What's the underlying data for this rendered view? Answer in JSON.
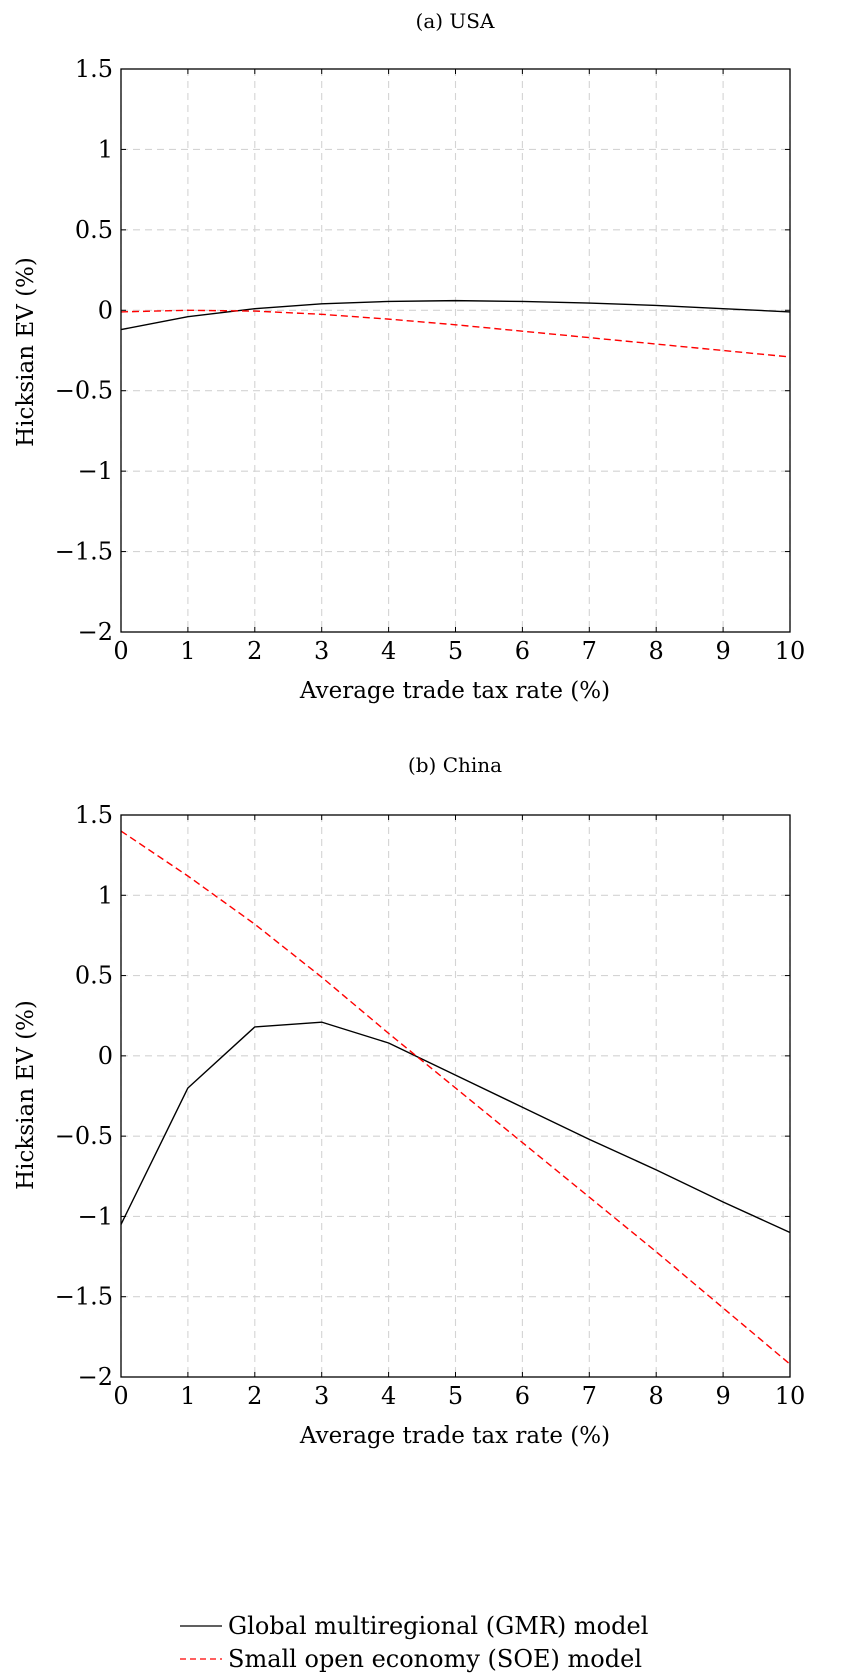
{
  "chart_data": [
    {
      "type": "line",
      "title": "(a) USA",
      "xlabel": "Average trade tax rate (%)",
      "ylabel": "Hicksian EV (%)",
      "xlim": [
        0,
        10
      ],
      "ylim": [
        -2,
        1.5
      ],
      "x_ticks": [
        0,
        1,
        2,
        3,
        4,
        5,
        6,
        7,
        8,
        9,
        10
      ],
      "y_ticks": [
        -2,
        -1.5,
        -1,
        -0.5,
        0,
        0.5,
        1,
        1.5
      ],
      "x_tick_labels": [
        "0",
        "1",
        "2",
        "3",
        "4",
        "5",
        "6",
        "7",
        "8",
        "9",
        "10"
      ],
      "y_tick_labels": [
        "−2",
        "−1.5",
        "−1",
        "−0.5",
        "0",
        "0.5",
        "1",
        "1.5"
      ],
      "grid": true,
      "x": [
        0,
        1,
        2,
        3,
        4,
        5,
        6,
        7,
        8,
        9,
        10
      ],
      "series": [
        {
          "name": "gmr",
          "color": "#000000",
          "dash": "solid",
          "values": [
            -0.12,
            -0.04,
            0.01,
            0.04,
            0.055,
            0.06,
            0.055,
            0.045,
            0.03,
            0.01,
            -0.01
          ]
        },
        {
          "name": "soe",
          "color": "#ff0000",
          "dash": "dashed",
          "values": [
            -0.01,
            0.0,
            -0.005,
            -0.025,
            -0.055,
            -0.09,
            -0.13,
            -0.17,
            -0.21,
            -0.25,
            -0.29
          ]
        }
      ]
    },
    {
      "type": "line",
      "title": "(b) China",
      "xlabel": "Average trade tax rate (%)",
      "ylabel": "Hicksian EV (%)",
      "xlim": [
        0,
        10
      ],
      "ylim": [
        -2,
        1.5
      ],
      "x_ticks": [
        0,
        1,
        2,
        3,
        4,
        5,
        6,
        7,
        8,
        9,
        10
      ],
      "y_ticks": [
        -2,
        -1.5,
        -1,
        -0.5,
        0,
        0.5,
        1,
        1.5
      ],
      "x_tick_labels": [
        "0",
        "1",
        "2",
        "3",
        "4",
        "5",
        "6",
        "7",
        "8",
        "9",
        "10"
      ],
      "y_tick_labels": [
        "−2",
        "−1.5",
        "−1",
        "−0.5",
        "0",
        "0.5",
        "1",
        "1.5"
      ],
      "grid": true,
      "x": [
        0,
        1,
        2,
        3,
        4,
        5,
        6,
        7,
        8,
        9,
        10
      ],
      "series": [
        {
          "name": "gmr",
          "color": "#000000",
          "dash": "solid",
          "values": [
            -1.05,
            -0.2,
            0.18,
            0.21,
            0.08,
            -0.12,
            -0.32,
            -0.52,
            -0.71,
            -0.91,
            -1.1
          ]
        },
        {
          "name": "soe",
          "color": "#ff0000",
          "dash": "dashed",
          "values": [
            1.4,
            1.12,
            0.82,
            0.49,
            0.14,
            -0.2,
            -0.54,
            -0.88,
            -1.22,
            -1.57,
            -1.92
          ]
        }
      ]
    }
  ],
  "legend": {
    "placement": "bottom-center",
    "entries": [
      {
        "pre": "Global multiregional (",
        "abbr": "GMR",
        "post": ") model",
        "color": "#000000",
        "dash": "solid"
      },
      {
        "pre": "Small open economy (",
        "abbr": "SOE",
        "post": ") model",
        "color": "#ff0000",
        "dash": "dashed"
      }
    ]
  }
}
